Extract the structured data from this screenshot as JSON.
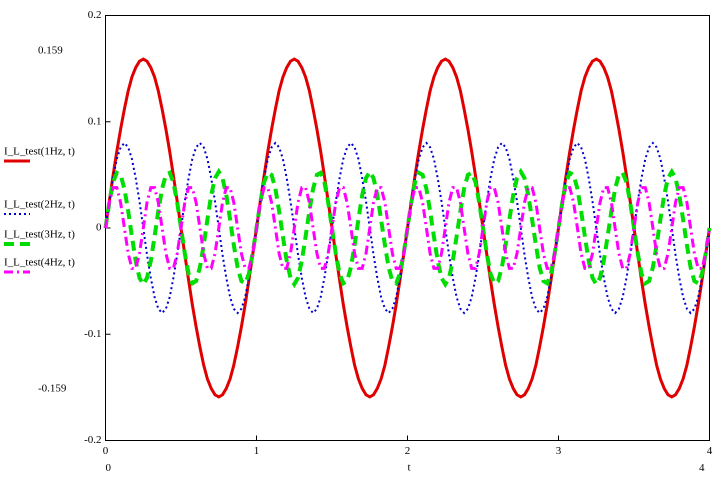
{
  "chart_data": {
    "type": "line",
    "x": [
      0,
      0.025,
      0.05,
      0.075,
      0.1,
      0.125,
      0.15,
      0.175,
      0.2,
      0.225,
      0.25,
      0.275,
      0.3,
      0.325,
      0.35,
      0.375,
      0.4,
      0.425,
      0.45,
      0.475,
      0.5,
      0.525,
      0.55,
      0.575,
      0.6,
      0.625,
      0.65,
      0.675,
      0.7,
      0.725,
      0.75,
      0.775,
      0.8,
      0.825,
      0.85,
      0.875,
      0.9,
      0.925,
      0.95,
      0.975,
      1,
      1.025,
      1.05,
      1.075,
      1.1,
      1.125,
      1.15,
      1.175,
      1.2,
      1.225,
      1.25,
      1.275,
      1.3,
      1.325,
      1.35,
      1.375,
      1.4,
      1.425,
      1.45,
      1.475,
      1.5,
      1.525,
      1.55,
      1.575,
      1.6,
      1.625,
      1.65,
      1.675,
      1.7,
      1.725,
      1.75,
      1.775,
      1.8,
      1.825,
      1.85,
      1.875,
      1.9,
      1.925,
      1.95,
      1.975,
      2,
      2.025,
      2.05,
      2.075,
      2.1,
      2.125,
      2.15,
      2.175,
      2.2,
      2.225,
      2.25,
      2.275,
      2.3,
      2.325,
      2.35,
      2.375,
      2.4,
      2.425,
      2.45,
      2.475,
      2.5,
      2.525,
      2.55,
      2.575,
      2.6,
      2.625,
      2.65,
      2.675,
      2.7,
      2.725,
      2.75,
      2.775,
      2.8,
      2.825,
      2.85,
      2.875,
      2.9,
      2.925,
      2.95,
      2.975,
      3,
      3.025,
      3.05,
      3.075,
      3.1,
      3.125,
      3.15,
      3.175,
      3.2,
      3.225,
      3.25,
      3.275,
      3.3,
      3.325,
      3.35,
      3.375,
      3.4,
      3.425,
      3.45,
      3.475,
      3.5,
      3.525,
      3.55,
      3.575,
      3.6,
      3.625,
      3.65,
      3.675,
      3.7,
      3.725,
      3.75,
      3.775,
      3.8,
      3.825,
      3.85,
      3.875,
      3.9,
      3.925,
      3.95,
      3.975,
      4
    ],
    "series": [
      {
        "name": "I_L_test(1Hz, t)",
        "color": "#e00000",
        "dash": "solid",
        "values": [
          0,
          0.025,
          0.049,
          0.072,
          0.093,
          0.112,
          0.129,
          0.142,
          0.151,
          0.157,
          0.159,
          0.157,
          0.151,
          0.142,
          0.129,
          0.112,
          0.093,
          0.072,
          0.049,
          0.025,
          0,
          -0.025,
          -0.049,
          -0.072,
          -0.093,
          -0.112,
          -0.129,
          -0.142,
          -0.151,
          -0.157,
          -0.159,
          -0.157,
          -0.151,
          -0.142,
          -0.129,
          -0.112,
          -0.093,
          -0.072,
          -0.049,
          -0.025,
          0,
          0.025,
          0.049,
          0.072,
          0.093,
          0.112,
          0.129,
          0.142,
          0.151,
          0.157,
          0.159,
          0.157,
          0.151,
          0.142,
          0.129,
          0.112,
          0.093,
          0.072,
          0.049,
          0.025,
          0,
          -0.025,
          -0.049,
          -0.072,
          -0.093,
          -0.112,
          -0.129,
          -0.142,
          -0.151,
          -0.157,
          -0.159,
          -0.157,
          -0.151,
          -0.142,
          -0.129,
          -0.112,
          -0.093,
          -0.072,
          -0.049,
          -0.025,
          0,
          0.025,
          0.049,
          0.072,
          0.093,
          0.112,
          0.129,
          0.142,
          0.151,
          0.157,
          0.159,
          0.157,
          0.151,
          0.142,
          0.129,
          0.112,
          0.093,
          0.072,
          0.049,
          0.025,
          0,
          -0.025,
          -0.049,
          -0.072,
          -0.093,
          -0.112,
          -0.129,
          -0.142,
          -0.151,
          -0.157,
          -0.159,
          -0.157,
          -0.151,
          -0.142,
          -0.129,
          -0.112,
          -0.093,
          -0.072,
          -0.049,
          -0.025,
          0,
          0.025,
          0.049,
          0.072,
          0.093,
          0.112,
          0.129,
          0.142,
          0.151,
          0.157,
          0.159,
          0.157,
          0.151,
          0.142,
          0.129,
          0.112,
          0.093,
          0.072,
          0.049,
          0.025,
          0,
          -0.025,
          -0.049,
          -0.072,
          -0.093,
          -0.112,
          -0.129,
          -0.142,
          -0.151,
          -0.157,
          -0.159,
          -0.157,
          -0.151,
          -0.142,
          -0.129,
          -0.112,
          -0.093,
          -0.072,
          -0.049,
          -0.025,
          0
        ]
      },
      {
        "name": "I_L_test(2Hz, t)",
        "color": "#0000d0",
        "dash": "dotted",
        "values": [
          0,
          0.025,
          0.047,
          0.065,
          0.076,
          0.08,
          0.076,
          0.065,
          0.047,
          0.025,
          0,
          -0.025,
          -0.047,
          -0.065,
          -0.076,
          -0.08,
          -0.076,
          -0.065,
          -0.047,
          -0.025,
          0,
          0.025,
          0.047,
          0.065,
          0.076,
          0.08,
          0.076,
          0.065,
          0.047,
          0.025,
          0,
          -0.025,
          -0.047,
          -0.065,
          -0.076,
          -0.08,
          -0.076,
          -0.065,
          -0.047,
          -0.025,
          0,
          0.025,
          0.047,
          0.065,
          0.076,
          0.08,
          0.076,
          0.065,
          0.047,
          0.025,
          0,
          -0.025,
          -0.047,
          -0.065,
          -0.076,
          -0.08,
          -0.076,
          -0.065,
          -0.047,
          -0.025,
          0,
          0.025,
          0.047,
          0.065,
          0.076,
          0.08,
          0.076,
          0.065,
          0.047,
          0.025,
          0,
          -0.025,
          -0.047,
          -0.065,
          -0.076,
          -0.08,
          -0.076,
          -0.065,
          -0.047,
          -0.025,
          0,
          0.025,
          0.047,
          0.065,
          0.076,
          0.08,
          0.076,
          0.065,
          0.047,
          0.025,
          0,
          -0.025,
          -0.047,
          -0.065,
          -0.076,
          -0.08,
          -0.076,
          -0.065,
          -0.047,
          -0.025,
          0,
          0.025,
          0.047,
          0.065,
          0.076,
          0.08,
          0.076,
          0.065,
          0.047,
          0.025,
          0,
          -0.025,
          -0.047,
          -0.065,
          -0.076,
          -0.08,
          -0.076,
          -0.065,
          -0.047,
          -0.025,
          0,
          0.025,
          0.047,
          0.065,
          0.076,
          0.08,
          0.076,
          0.065,
          0.047,
          0.025,
          0,
          -0.025,
          -0.047,
          -0.065,
          -0.076,
          -0.08,
          -0.076,
          -0.065,
          -0.047,
          -0.025,
          0,
          0.025,
          0.047,
          0.065,
          0.076,
          0.08,
          0.076,
          0.065,
          0.047,
          0.025,
          0,
          -0.025,
          -0.047,
          -0.065,
          -0.076,
          -0.08,
          -0.076,
          -0.065,
          -0.047,
          -0.025,
          0
        ]
      },
      {
        "name": "I_L_test(3Hz, t)",
        "color": "#00dd00",
        "dash": "dashed",
        "values": [
          0,
          0.024,
          0.043,
          0.052,
          0.05,
          0.037,
          0.016,
          -0.008,
          -0.031,
          -0.047,
          -0.053,
          -0.047,
          -0.031,
          -0.008,
          0.016,
          0.037,
          0.05,
          0.052,
          0.043,
          0.024,
          0,
          -0.024,
          -0.043,
          -0.052,
          -0.05,
          -0.037,
          -0.016,
          0.008,
          0.031,
          0.047,
          0.053,
          0.047,
          0.031,
          0.008,
          -0.016,
          -0.037,
          -0.05,
          -0.052,
          -0.043,
          -0.024,
          0,
          0.024,
          0.043,
          0.052,
          0.05,
          0.037,
          0.016,
          -0.008,
          -0.031,
          -0.047,
          -0.053,
          -0.047,
          -0.031,
          -0.008,
          0.016,
          0.037,
          0.05,
          0.052,
          0.043,
          0.024,
          0,
          -0.024,
          -0.043,
          -0.052,
          -0.05,
          -0.037,
          -0.016,
          0.008,
          0.031,
          0.047,
          0.053,
          0.047,
          0.031,
          0.008,
          -0.016,
          -0.037,
          -0.05,
          -0.052,
          -0.043,
          -0.024,
          0,
          0.024,
          0.043,
          0.052,
          0.05,
          0.037,
          0.016,
          -0.008,
          -0.031,
          -0.047,
          -0.053,
          -0.047,
          -0.031,
          -0.008,
          0.016,
          0.037,
          0.05,
          0.052,
          0.043,
          0.024,
          0,
          -0.024,
          -0.043,
          -0.052,
          -0.05,
          -0.037,
          -0.016,
          0.008,
          0.031,
          0.047,
          0.053,
          0.047,
          0.031,
          0.008,
          -0.016,
          -0.037,
          -0.05,
          -0.052,
          -0.043,
          -0.024,
          0,
          0.024,
          0.043,
          0.052,
          0.05,
          0.037,
          0.016,
          -0.008,
          -0.031,
          -0.047,
          -0.053,
          -0.047,
          -0.031,
          -0.008,
          0.016,
          0.037,
          0.05,
          0.052,
          0.043,
          0.024,
          0,
          -0.024,
          -0.043,
          -0.052,
          -0.05,
          -0.037,
          -0.016,
          0.008,
          0.031,
          0.047,
          0.053,
          0.047,
          0.031,
          0.008,
          -0.016,
          -0.037,
          -0.05,
          -0.052,
          -0.043,
          -0.024,
          0
        ]
      },
      {
        "name": "I_L_test(4Hz, t)",
        "color": "#ff00ff",
        "dash": "dashdot",
        "values": [
          0,
          0.024,
          0.038,
          0.038,
          0.024,
          0,
          -0.024,
          -0.038,
          -0.038,
          -0.024,
          0,
          0.024,
          0.038,
          0.038,
          0.024,
          0,
          -0.024,
          -0.038,
          -0.038,
          -0.024,
          0,
          0.024,
          0.038,
          0.038,
          0.024,
          0,
          -0.024,
          -0.038,
          -0.038,
          -0.024,
          0,
          0.024,
          0.038,
          0.038,
          0.024,
          0,
          -0.024,
          -0.038,
          -0.038,
          -0.024,
          0,
          0.024,
          0.038,
          0.038,
          0.024,
          0,
          -0.024,
          -0.038,
          -0.038,
          -0.024,
          0,
          0.024,
          0.038,
          0.038,
          0.024,
          0,
          -0.024,
          -0.038,
          -0.038,
          -0.024,
          0,
          0.024,
          0.038,
          0.038,
          0.024,
          0,
          -0.024,
          -0.038,
          -0.038,
          -0.024,
          0,
          0.024,
          0.038,
          0.038,
          0.024,
          0,
          -0.024,
          -0.038,
          -0.038,
          -0.024,
          0,
          0.024,
          0.038,
          0.038,
          0.024,
          0,
          -0.024,
          -0.038,
          -0.038,
          -0.024,
          0,
          0.024,
          0.038,
          0.038,
          0.024,
          0,
          -0.024,
          -0.038,
          -0.038,
          -0.024,
          0,
          0.024,
          0.038,
          0.038,
          0.024,
          0,
          -0.024,
          -0.038,
          -0.038,
          -0.024,
          0,
          0.024,
          0.038,
          0.038,
          0.024,
          0,
          -0.024,
          -0.038,
          -0.038,
          -0.024,
          0,
          0.024,
          0.038,
          0.038,
          0.024,
          0,
          -0.024,
          -0.038,
          -0.038,
          -0.024,
          0,
          0.024,
          0.038,
          0.038,
          0.024,
          0,
          -0.024,
          -0.038,
          -0.038,
          -0.024,
          0,
          0.024,
          0.038,
          0.038,
          0.024,
          0,
          -0.024,
          -0.038,
          -0.038,
          -0.024,
          0,
          0.024,
          0.038,
          0.038,
          0.024,
          0,
          -0.024,
          -0.038,
          -0.038,
          -0.024,
          0
        ]
      }
    ],
    "xlim": [
      0,
      4
    ],
    "xticks": [
      0,
      1,
      2,
      3,
      4
    ],
    "ylim": [
      -0.2,
      0.2
    ],
    "yticks": [
      -0.2,
      -0.1,
      0,
      0.1,
      0.2
    ],
    "x_label": "t",
    "x_limit_labels": [
      0,
      4
    ],
    "y_limit_labels": [
      -0.159,
      0.159
    ],
    "grid": false,
    "legend": "left"
  }
}
